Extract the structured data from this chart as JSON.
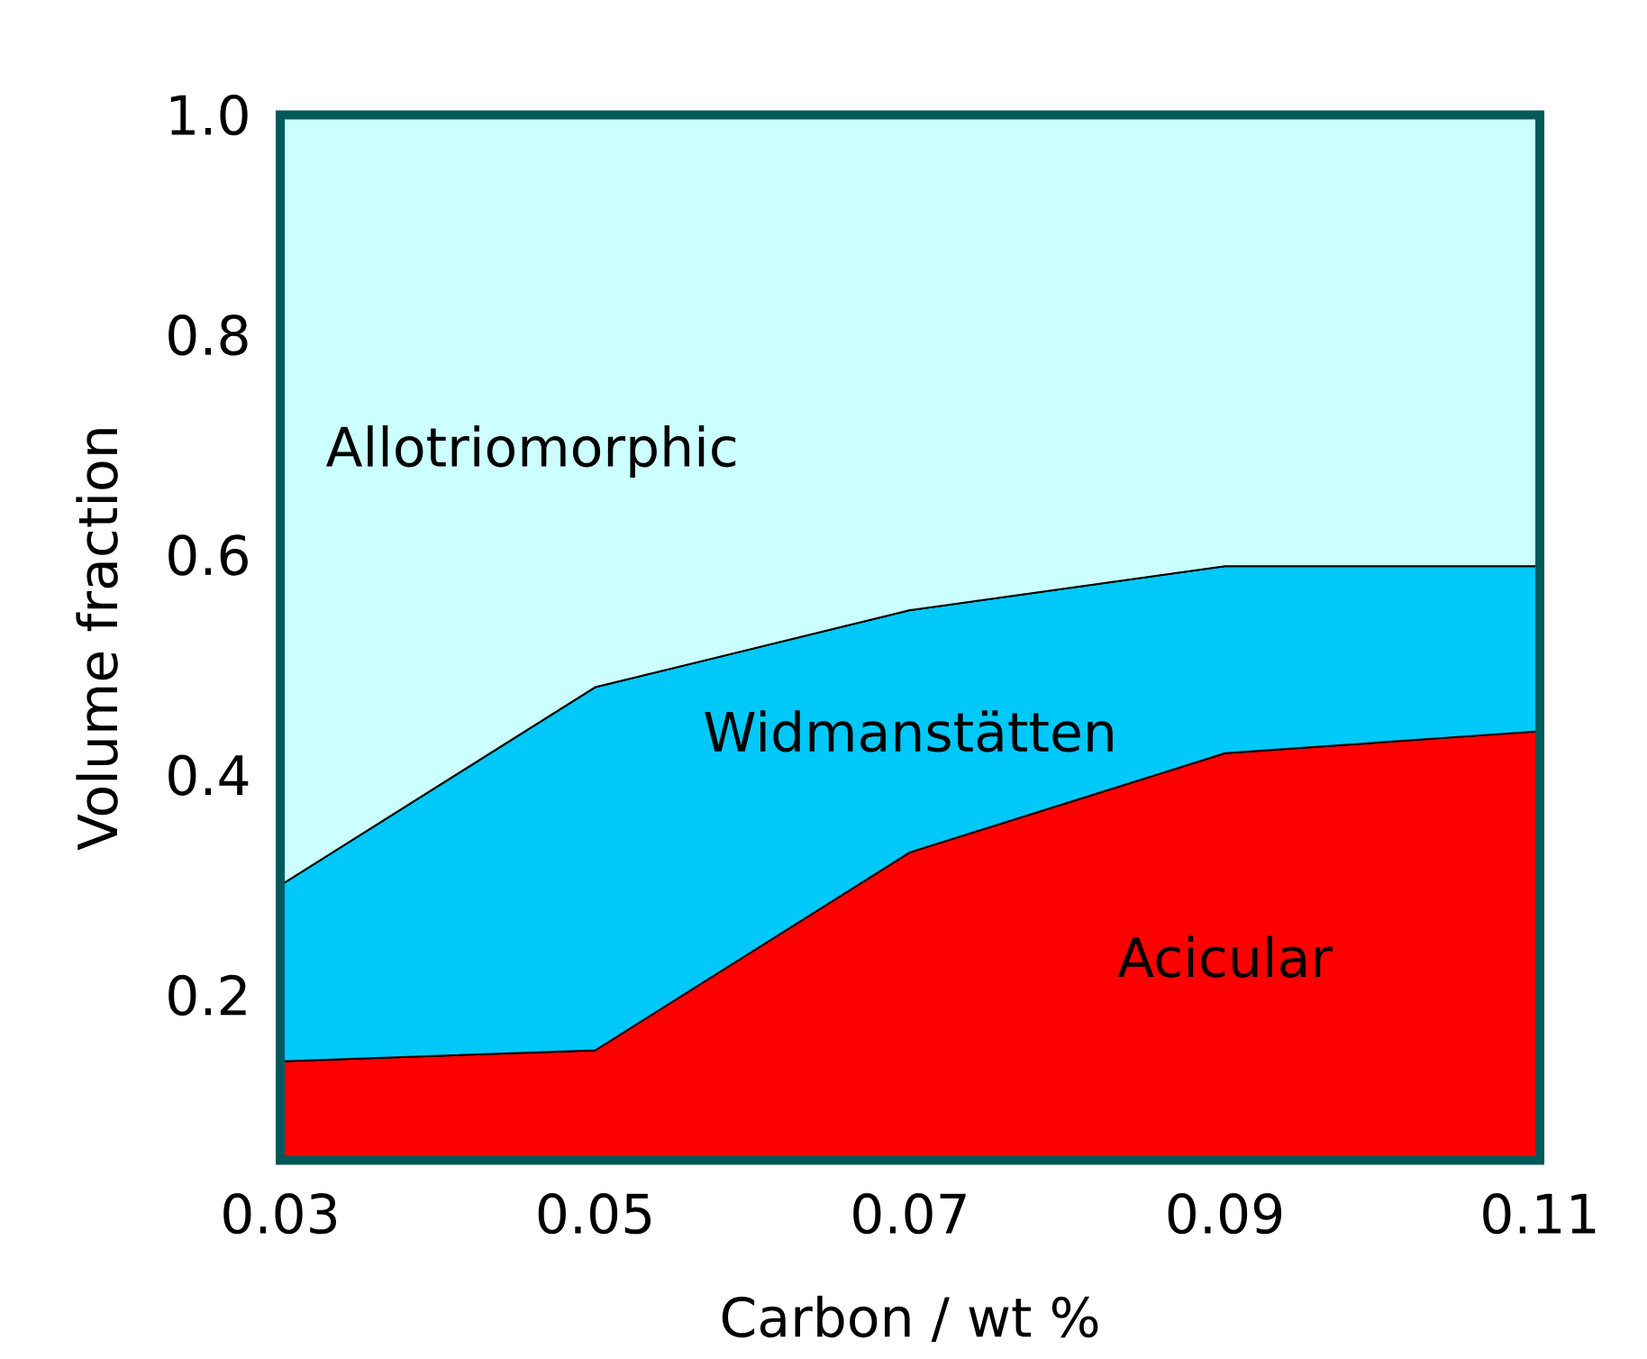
{
  "chart_data": {
    "type": "area",
    "stacked": true,
    "xlabel": "Carbon / wt %",
    "ylabel": "Volume fraction",
    "x": [
      0.03,
      0.05,
      0.07,
      0.09,
      0.11
    ],
    "series": [
      {
        "name": "Acicular",
        "color": "#ff0000",
        "values": [
          0.14,
          0.15,
          0.33,
          0.42,
          0.44
        ]
      },
      {
        "name": "Widmanstätten",
        "color": "#00c8f8",
        "values": [
          0.16,
          0.33,
          0.22,
          0.17,
          0.15
        ]
      },
      {
        "name": "Allotriomorphic",
        "color": "#ccffff",
        "values": [
          0.7,
          0.52,
          0.45,
          0.41,
          0.41
        ]
      }
    ],
    "xlim": [
      0.03,
      0.11
    ],
    "xticks": [
      {
        "value": 0.03,
        "label": "0.03"
      },
      {
        "value": 0.05,
        "label": "0.05"
      },
      {
        "value": 0.07,
        "label": "0.07"
      },
      {
        "value": 0.09,
        "label": "0.09"
      },
      {
        "value": 0.11,
        "label": "0.11"
      }
    ],
    "ylim": [
      0.05,
      1.0
    ],
    "yticks": [
      {
        "value": 0.2,
        "label": "0.2"
      },
      {
        "value": 0.4,
        "label": "0.4"
      },
      {
        "value": 0.6,
        "label": "0.6"
      },
      {
        "value": 0.8,
        "label": "0.8"
      },
      {
        "value": 1.0,
        "label": "1.0"
      }
    ],
    "grid": false,
    "legend": false
  }
}
